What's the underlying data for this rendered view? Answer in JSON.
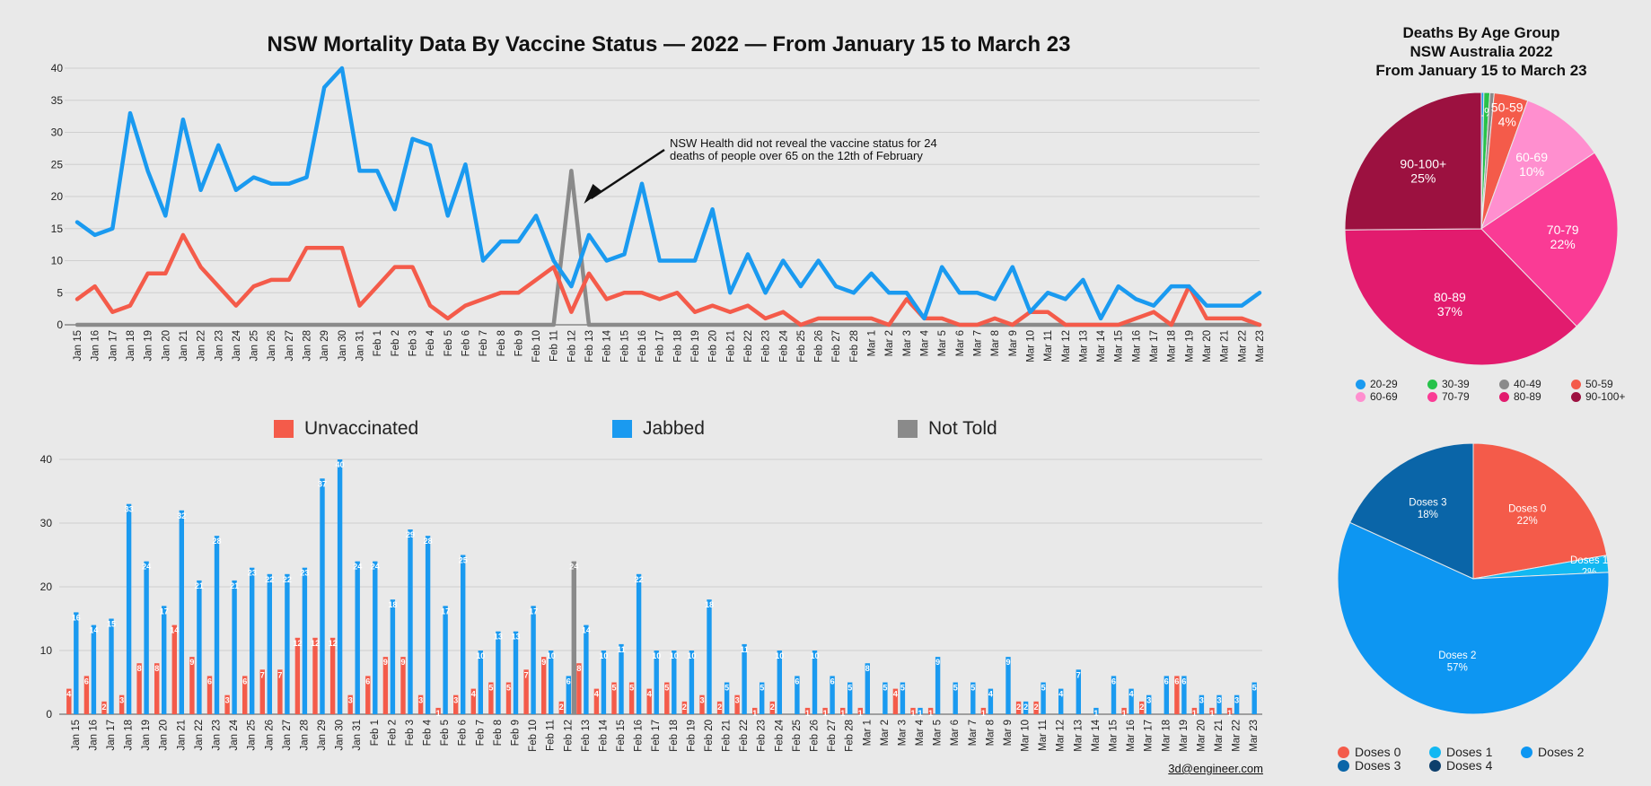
{
  "chart_data": [
    {
      "type": "line",
      "title": "NSW Mortality Data By Vaccine Status — 2022 — From January 15 to March 23",
      "categories": [
        "Jan 15",
        "Jan 16",
        "Jan 17",
        "Jan 18",
        "Jan 19",
        "Jan 20",
        "Jan 21",
        "Jan 22",
        "Jan 23",
        "Jan 24",
        "Jan 25",
        "Jan 26",
        "Jan 27",
        "Jan 28",
        "Jan 29",
        "Jan 30",
        "Jan 31",
        "Feb 1",
        "Feb 2",
        "Feb 3",
        "Feb 4",
        "Feb 5",
        "Feb 6",
        "Feb 7",
        "Feb 8",
        "Feb 9",
        "Feb 10",
        "Feb 11",
        "Feb 12",
        "Feb 13",
        "Feb 14",
        "Feb 15",
        "Feb 16",
        "Feb 17",
        "Feb 18",
        "Feb 19",
        "Feb 20",
        "Feb 21",
        "Feb 22",
        "Feb 23",
        "Feb 24",
        "Feb 25",
        "Feb 26",
        "Feb 27",
        "Feb 28",
        "Mar 1",
        "Mar 2",
        "Mar 3",
        "Mar 4",
        "Mar 5",
        "Mar 6",
        "Mar 7",
        "Mar 8",
        "Mar 9",
        "Mar 10",
        "Mar 11",
        "Mar 12",
        "Mar 13",
        "Mar 14",
        "Mar 15",
        "Mar 16",
        "Mar 17",
        "Mar 18",
        "Mar 19",
        "Mar 20",
        "Mar 21",
        "Mar 22",
        "Mar 23"
      ],
      "ylim": [
        0,
        40
      ],
      "yticks": [
        0,
        5,
        10,
        15,
        20,
        25,
        30,
        35,
        40
      ],
      "grid": true,
      "series": [
        {
          "name": "Unvaccinated",
          "color": "#f45b4a",
          "values": [
            4,
            6,
            2,
            3,
            8,
            8,
            14,
            9,
            6,
            3,
            6,
            7,
            7,
            12,
            12,
            12,
            3,
            6,
            9,
            9,
            3,
            1,
            3,
            4,
            5,
            5,
            7,
            9,
            2,
            8,
            4,
            5,
            5,
            4,
            5,
            2,
            3,
            2,
            3,
            1,
            2,
            0,
            1,
            1,
            1,
            1,
            0,
            4,
            1,
            1,
            0,
            0,
            1,
            0,
            2,
            2,
            0,
            0,
            0,
            0,
            1,
            2,
            0,
            6,
            1,
            1,
            1,
            0
          ]
        },
        {
          "name": "Jabbed",
          "color": "#1a9af0",
          "values": [
            16,
            14,
            15,
            33,
            24,
            17,
            32,
            21,
            28,
            21,
            23,
            22,
            22,
            23,
            37,
            40,
            24,
            24,
            18,
            29,
            28,
            17,
            25,
            10,
            13,
            13,
            17,
            10,
            6,
            14,
            10,
            11,
            22,
            10,
            10,
            10,
            18,
            5,
            11,
            5,
            10,
            6,
            10,
            6,
            5,
            8,
            5,
            5,
            1,
            9,
            5,
            5,
            4,
            9,
            2,
            5,
            4,
            7,
            1,
            6,
            4,
            3,
            6,
            6,
            3,
            3,
            3,
            5
          ]
        },
        {
          "name": "Not Told",
          "color": "#8a8a8a",
          "values": [
            0,
            0,
            0,
            0,
            0,
            0,
            0,
            0,
            0,
            0,
            0,
            0,
            0,
            0,
            0,
            0,
            0,
            0,
            0,
            0,
            0,
            0,
            0,
            0,
            0,
            0,
            0,
            0,
            24,
            0,
            0,
            0,
            0,
            0,
            0,
            0,
            0,
            0,
            0,
            0,
            0,
            0,
            0,
            0,
            0,
            0,
            0,
            0,
            0,
            0,
            0,
            0,
            0,
            0,
            0,
            0,
            0,
            0,
            0,
            0,
            0,
            0,
            0,
            0,
            0,
            0,
            0,
            0
          ]
        }
      ],
      "annotation": "NSW Health did not reveal the vaccine status for 24 deaths of people over 65 on the 12th of February"
    },
    {
      "type": "bar",
      "ylim": [
        0,
        40
      ],
      "yticks": [
        0,
        10,
        20,
        30,
        40
      ],
      "grid": true,
      "legend": [
        "Unvaccinated",
        "Jabbed",
        "Not Told"
      ],
      "note": "same categories and series as the line chart"
    },
    {
      "type": "pie",
      "title": "Deaths By Age Group\nNSW Australia 2022\nFrom January 15 to March 23",
      "slices": [
        {
          "label": "20-29",
          "value": 0.3,
          "color": "#1a9af0",
          "text": ""
        },
        {
          "label": "30-39",
          "value": 0.7,
          "color": "#27c24a",
          "text": "1%"
        },
        {
          "label": "40-49",
          "value": 0.5,
          "color": "#8a8a8a",
          "text": ""
        },
        {
          "label": "50-59",
          "value": 4,
          "color": "#f45b4a",
          "text": "50-59\n4%"
        },
        {
          "label": "60-69",
          "value": 10,
          "color": "#ff8fcf",
          "text": "60-69\n10%"
        },
        {
          "label": "70-79",
          "value": 22,
          "color": "#fa3b95",
          "text": "70-79\n22%"
        },
        {
          "label": "80-89",
          "value": 37,
          "color": "#e21b6e",
          "text": "80-89\n37%"
        },
        {
          "label": "90-100+",
          "value": 25,
          "color": "#9c1140",
          "text": "90-100+\n25%"
        }
      ]
    },
    {
      "type": "pie",
      "slices": [
        {
          "label": "Doses 0",
          "value": 22,
          "color": "#f45b4a",
          "text": "Doses 0\n22%"
        },
        {
          "label": "Doses 1",
          "value": 2,
          "color": "#12b8f2",
          "text": "Doses 1\n2%"
        },
        {
          "label": "Doses 2",
          "value": 57,
          "color": "#0d96f2",
          "text": "Doses 2\n57%"
        },
        {
          "label": "Doses 3",
          "value": 18,
          "color": "#0a65a8",
          "text": "Doses 3\n18%"
        },
        {
          "label": "Doses 4",
          "value": 0,
          "color": "#0d3f6c",
          "text": ""
        }
      ]
    }
  ],
  "credit": "3d@engineer.com"
}
